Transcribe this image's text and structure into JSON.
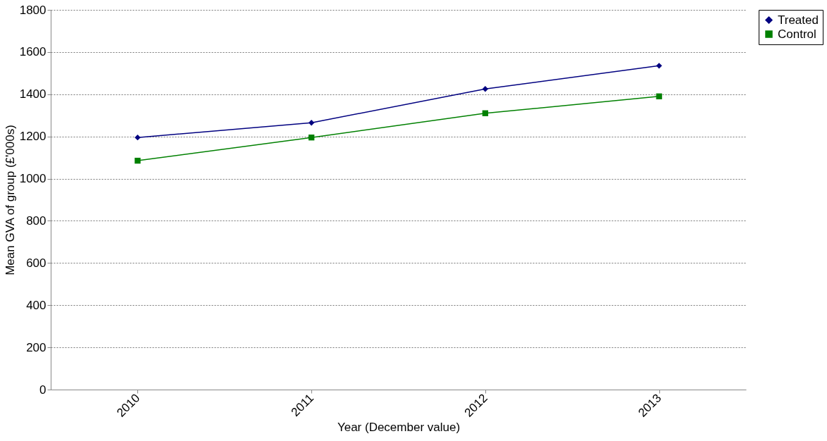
{
  "chart_data": {
    "type": "line",
    "xlabel": "Year (December value)",
    "ylabel": "Mean GVA of group (£'000s)",
    "categories": [
      "2010",
      "2011",
      "2012",
      "2013"
    ],
    "series": [
      {
        "name": "Treated",
        "color": "#000080",
        "marker": "diamond",
        "values": [
          1195,
          1265,
          1425,
          1535
        ]
      },
      {
        "name": "Control",
        "color": "#008000",
        "marker": "square",
        "values": [
          1085,
          1195,
          1310,
          1390
        ]
      }
    ],
    "ylim": [
      0,
      1800
    ],
    "yticks": [
      0,
      200,
      400,
      600,
      800,
      1000,
      1200,
      1400,
      1600,
      1800
    ],
    "grid": "y",
    "legend": "right",
    "line_style": "solid"
  }
}
